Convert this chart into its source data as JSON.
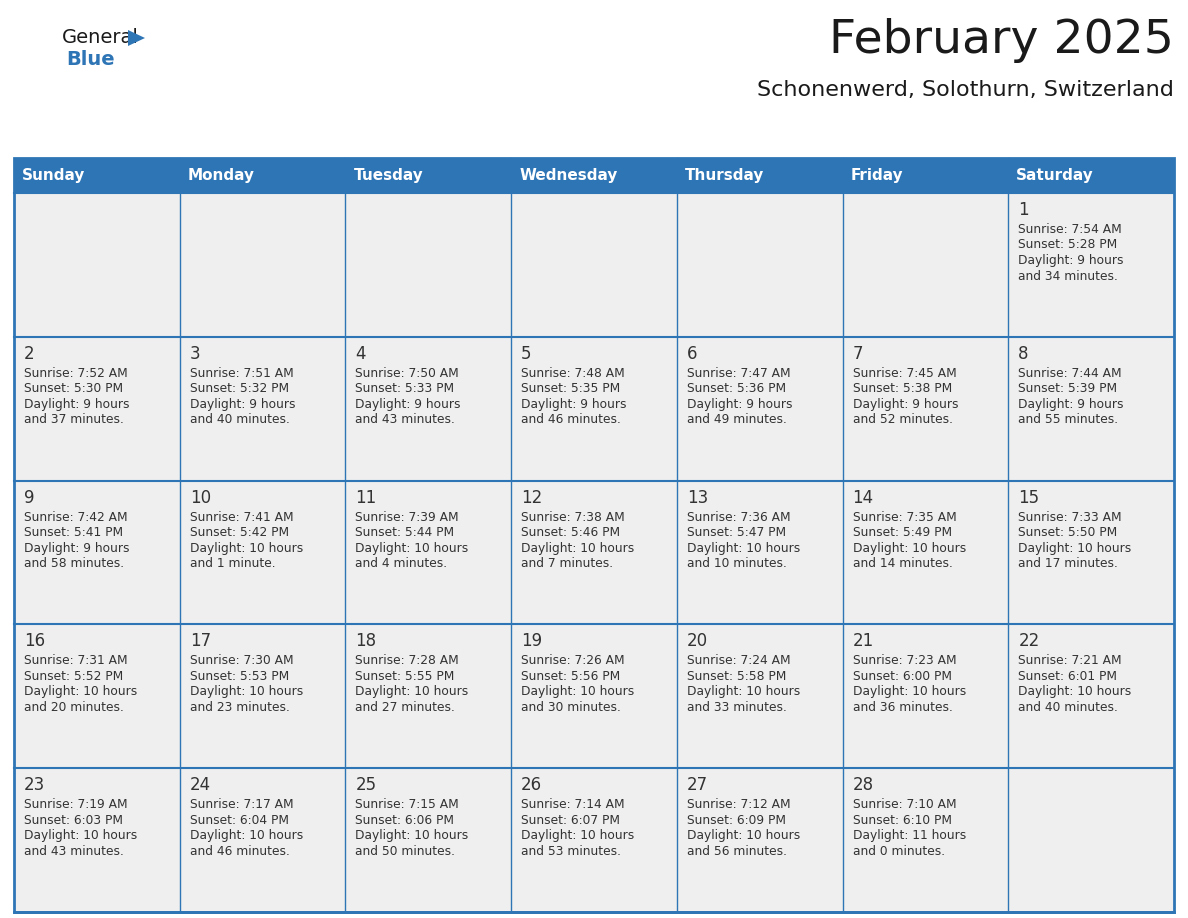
{
  "title": "February 2025",
  "subtitle": "Schonenwerd, Solothurn, Switzerland",
  "days_of_week": [
    "Sunday",
    "Monday",
    "Tuesday",
    "Wednesday",
    "Thursday",
    "Friday",
    "Saturday"
  ],
  "header_bg": "#2E75B6",
  "header_text": "#FFFFFF",
  "cell_bg": "#EFEFEF",
  "border_color": "#2E75B6",
  "day_num_color": "#333333",
  "cell_text_color": "#333333",
  "title_color": "#1a1a1a",
  "subtitle_color": "#1a1a1a",
  "weeks": [
    [
      {
        "day": null
      },
      {
        "day": null
      },
      {
        "day": null
      },
      {
        "day": null
      },
      {
        "day": null
      },
      {
        "day": null
      },
      {
        "day": 1,
        "sunrise": "7:54 AM",
        "sunset": "5:28 PM",
        "daylight": "9 hours and 34 minutes."
      }
    ],
    [
      {
        "day": 2,
        "sunrise": "7:52 AM",
        "sunset": "5:30 PM",
        "daylight": "9 hours and 37 minutes."
      },
      {
        "day": 3,
        "sunrise": "7:51 AM",
        "sunset": "5:32 PM",
        "daylight": "9 hours and 40 minutes."
      },
      {
        "day": 4,
        "sunrise": "7:50 AM",
        "sunset": "5:33 PM",
        "daylight": "9 hours and 43 minutes."
      },
      {
        "day": 5,
        "sunrise": "7:48 AM",
        "sunset": "5:35 PM",
        "daylight": "9 hours and 46 minutes."
      },
      {
        "day": 6,
        "sunrise": "7:47 AM",
        "sunset": "5:36 PM",
        "daylight": "9 hours and 49 minutes."
      },
      {
        "day": 7,
        "sunrise": "7:45 AM",
        "sunset": "5:38 PM",
        "daylight": "9 hours and 52 minutes."
      },
      {
        "day": 8,
        "sunrise": "7:44 AM",
        "sunset": "5:39 PM",
        "daylight": "9 hours and 55 minutes."
      }
    ],
    [
      {
        "day": 9,
        "sunrise": "7:42 AM",
        "sunset": "5:41 PM",
        "daylight": "9 hours and 58 minutes."
      },
      {
        "day": 10,
        "sunrise": "7:41 AM",
        "sunset": "5:42 PM",
        "daylight": "10 hours and 1 minute."
      },
      {
        "day": 11,
        "sunrise": "7:39 AM",
        "sunset": "5:44 PM",
        "daylight": "10 hours and 4 minutes."
      },
      {
        "day": 12,
        "sunrise": "7:38 AM",
        "sunset": "5:46 PM",
        "daylight": "10 hours and 7 minutes."
      },
      {
        "day": 13,
        "sunrise": "7:36 AM",
        "sunset": "5:47 PM",
        "daylight": "10 hours and 10 minutes."
      },
      {
        "day": 14,
        "sunrise": "7:35 AM",
        "sunset": "5:49 PM",
        "daylight": "10 hours and 14 minutes."
      },
      {
        "day": 15,
        "sunrise": "7:33 AM",
        "sunset": "5:50 PM",
        "daylight": "10 hours and 17 minutes."
      }
    ],
    [
      {
        "day": 16,
        "sunrise": "7:31 AM",
        "sunset": "5:52 PM",
        "daylight": "10 hours and 20 minutes."
      },
      {
        "day": 17,
        "sunrise": "7:30 AM",
        "sunset": "5:53 PM",
        "daylight": "10 hours and 23 minutes."
      },
      {
        "day": 18,
        "sunrise": "7:28 AM",
        "sunset": "5:55 PM",
        "daylight": "10 hours and 27 minutes."
      },
      {
        "day": 19,
        "sunrise": "7:26 AM",
        "sunset": "5:56 PM",
        "daylight": "10 hours and 30 minutes."
      },
      {
        "day": 20,
        "sunrise": "7:24 AM",
        "sunset": "5:58 PM",
        "daylight": "10 hours and 33 minutes."
      },
      {
        "day": 21,
        "sunrise": "7:23 AM",
        "sunset": "6:00 PM",
        "daylight": "10 hours and 36 minutes."
      },
      {
        "day": 22,
        "sunrise": "7:21 AM",
        "sunset": "6:01 PM",
        "daylight": "10 hours and 40 minutes."
      }
    ],
    [
      {
        "day": 23,
        "sunrise": "7:19 AM",
        "sunset": "6:03 PM",
        "daylight": "10 hours and 43 minutes."
      },
      {
        "day": 24,
        "sunrise": "7:17 AM",
        "sunset": "6:04 PM",
        "daylight": "10 hours and 46 minutes."
      },
      {
        "day": 25,
        "sunrise": "7:15 AM",
        "sunset": "6:06 PM",
        "daylight": "10 hours and 50 minutes."
      },
      {
        "day": 26,
        "sunrise": "7:14 AM",
        "sunset": "6:07 PM",
        "daylight": "10 hours and 53 minutes."
      },
      {
        "day": 27,
        "sunrise": "7:12 AM",
        "sunset": "6:09 PM",
        "daylight": "10 hours and 56 minutes."
      },
      {
        "day": 28,
        "sunrise": "7:10 AM",
        "sunset": "6:10 PM",
        "daylight": "11 hours and 0 minutes."
      },
      {
        "day": null
      }
    ]
  ]
}
